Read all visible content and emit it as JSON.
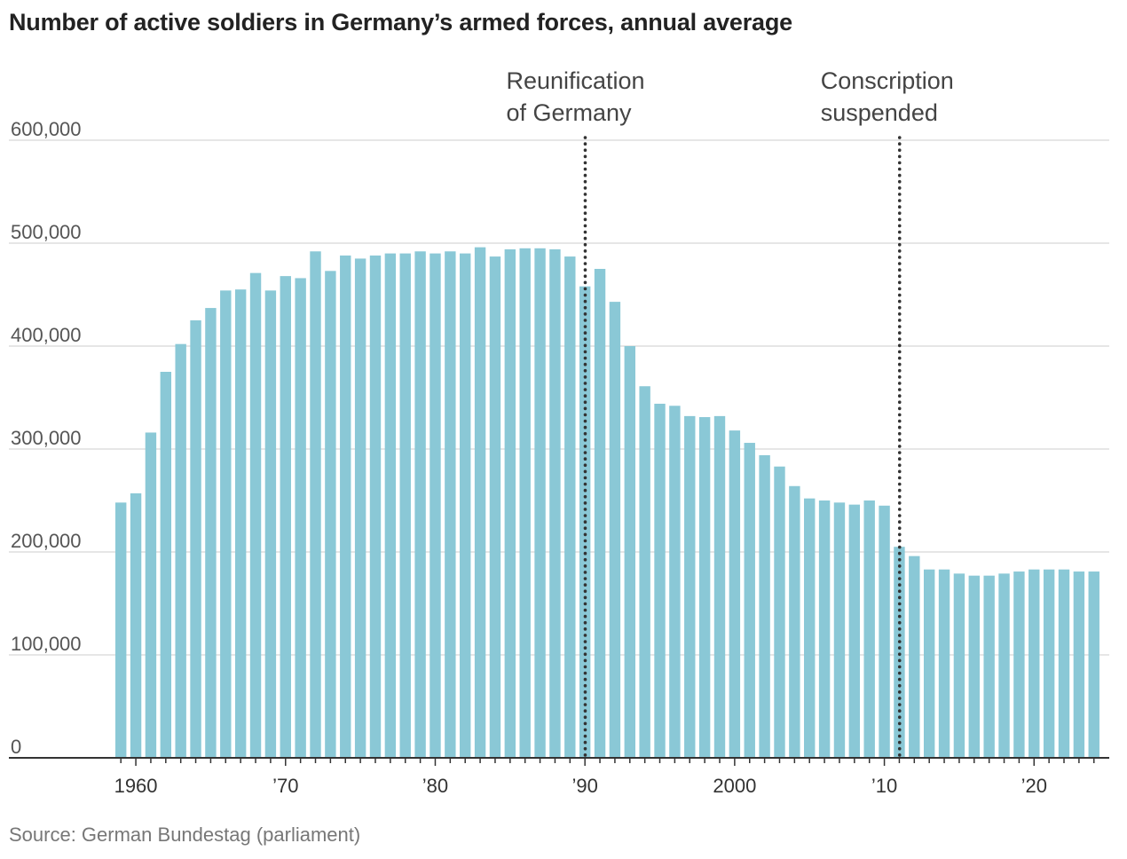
{
  "chart_data": {
    "type": "bar",
    "title": "Number of active soldiers in Germany’s armed forces, annual average",
    "source": "Source: German Bundestag (parliament)",
    "xlabel": "",
    "ylabel": "",
    "x": [
      1959,
      1960,
      1961,
      1962,
      1963,
      1964,
      1965,
      1966,
      1967,
      1968,
      1969,
      1970,
      1971,
      1972,
      1973,
      1974,
      1975,
      1976,
      1977,
      1978,
      1979,
      1980,
      1981,
      1982,
      1983,
      1984,
      1985,
      1986,
      1987,
      1988,
      1989,
      1990,
      1991,
      1992,
      1993,
      1994,
      1995,
      1996,
      1997,
      1998,
      1999,
      2000,
      2001,
      2002,
      2003,
      2004,
      2005,
      2006,
      2007,
      2008,
      2009,
      2010,
      2011,
      2012,
      2013,
      2014,
      2015,
      2016,
      2017,
      2018,
      2019,
      2020,
      2021,
      2022,
      2023,
      2024
    ],
    "values": [
      248000,
      257000,
      316000,
      375000,
      402000,
      425000,
      437000,
      454000,
      455000,
      471000,
      454000,
      468000,
      466000,
      492000,
      473000,
      488000,
      485000,
      488000,
      490000,
      490000,
      492000,
      490000,
      492000,
      490000,
      496000,
      487000,
      494000,
      495000,
      495000,
      494000,
      487000,
      458000,
      475000,
      443000,
      400000,
      361000,
      344000,
      342000,
      332000,
      331000,
      332000,
      318000,
      306000,
      294000,
      283000,
      264000,
      252000,
      250000,
      248000,
      246000,
      250000,
      245000,
      205000,
      196000,
      183000,
      183000,
      179000,
      177000,
      177000,
      179000,
      181000,
      183000,
      183000,
      183000,
      181000,
      181000
    ],
    "ylim": [
      0,
      600000
    ],
    "yticks": [
      {
        "value": 0,
        "label": "0"
      },
      {
        "value": 100000,
        "label": "100,000"
      },
      {
        "value": 200000,
        "label": "200,000"
      },
      {
        "value": 300000,
        "label": "300,000"
      },
      {
        "value": 400000,
        "label": "400,000"
      },
      {
        "value": 500000,
        "label": "500,000"
      },
      {
        "value": 600000,
        "label": "600,000"
      }
    ],
    "xticks": [
      {
        "value": 1960,
        "label": "1960"
      },
      {
        "value": 1970,
        "label": "’70"
      },
      {
        "value": 1980,
        "label": "’80"
      },
      {
        "value": 1990,
        "label": "’90"
      },
      {
        "value": 2000,
        "label": "2000"
      },
      {
        "value": 2010,
        "label": "’10"
      },
      {
        "value": 2020,
        "label": "’20"
      }
    ],
    "annotations": [
      {
        "x": 1990,
        "lines": [
          "Reunification",
          "of Germany"
        ]
      },
      {
        "x": 2011,
        "lines": [
          "Conscription",
          "suspended"
        ]
      }
    ],
    "grid": true,
    "colors": {
      "bar": "#8ac8d6",
      "grid": "#dddddd",
      "axis": "#333333",
      "marker_line": "#333333"
    }
  }
}
